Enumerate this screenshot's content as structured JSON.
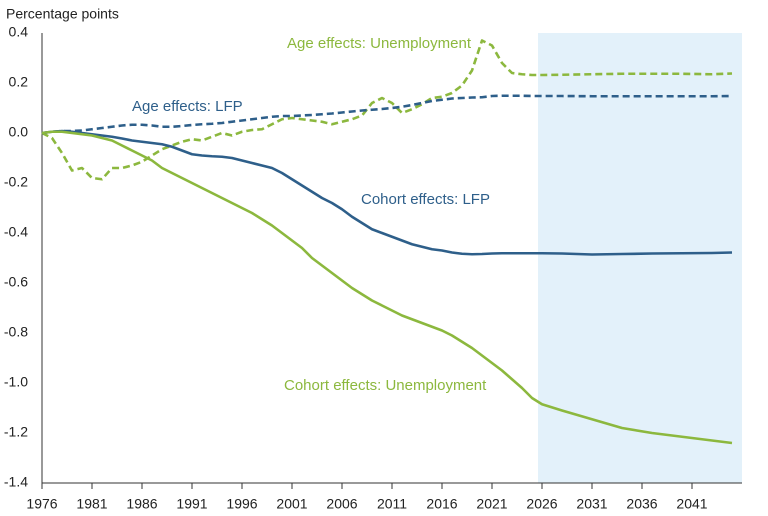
{
  "chart_data": {
    "type": "line",
    "ylabel": "Percentage points",
    "x": [
      1976,
      1977,
      1978,
      1979,
      1980,
      1981,
      1982,
      1983,
      1984,
      1985,
      1986,
      1987,
      1988,
      1989,
      1990,
      1991,
      1992,
      1993,
      1994,
      1995,
      1996,
      1997,
      1998,
      1999,
      2000,
      2001,
      2002,
      2003,
      2004,
      2005,
      2006,
      2007,
      2008,
      2009,
      2010,
      2011,
      2012,
      2013,
      2014,
      2015,
      2016,
      2017,
      2018,
      2019,
      2020,
      2021,
      2022,
      2023,
      2024,
      2025,
      2026,
      2028,
      2031,
      2034,
      2037,
      2040,
      2043,
      2045
    ],
    "xlim": [
      1976,
      2046
    ],
    "xticks": [
      1976,
      1981,
      1986,
      1991,
      1996,
      2001,
      2006,
      2011,
      2016,
      2021,
      2026,
      2031,
      2036,
      2041
    ],
    "ylim": [
      -1.4,
      0.4
    ],
    "yticks": [
      0.4,
      0.2,
      {
        "value": 0,
        "label": "0.0"
      },
      -0.2,
      -0.4,
      -0.6,
      -0.8,
      {
        "value": -1,
        "label": "-1.0"
      },
      -1.2,
      -1.4
    ],
    "shade": {
      "from": 2025.6,
      "to": 2046,
      "color": "#e3f1fa"
    },
    "series": [
      {
        "name": "Age effects: Unemployment",
        "color": "#8cb83e",
        "dash": true,
        "values": [
          0,
          -0.02,
          -0.08,
          -0.15,
          -0.14,
          -0.18,
          -0.185,
          -0.14,
          -0.14,
          -0.13,
          -0.115,
          -0.09,
          -0.065,
          -0.05,
          -0.035,
          -0.025,
          -0.03,
          -0.015,
          0,
          -0.01,
          0.005,
          0.012,
          0.015,
          0.035,
          0.055,
          0.06,
          0.055,
          0.05,
          0.045,
          0.035,
          0.045,
          0.055,
          0.07,
          0.12,
          0.14,
          0.12,
          0.08,
          0.095,
          0.115,
          0.14,
          0.145,
          0.16,
          0.19,
          0.25,
          0.37,
          0.35,
          0.28,
          0.24,
          0.235,
          0.232,
          0.232,
          0.233,
          0.235,
          0.237,
          0.237,
          0.237,
          0.235,
          0.238
        ]
      },
      {
        "name": "Age effects: LFP",
        "color": "#2e5f8a",
        "dash": true,
        "values": [
          0,
          0.005,
          0.008,
          0.008,
          0.01,
          0.015,
          0.02,
          0.025,
          0.03,
          0.033,
          0.033,
          0.03,
          0.025,
          0.025,
          0.028,
          0.032,
          0.035,
          0.037,
          0.04,
          0.045,
          0.05,
          0.055,
          0.06,
          0.065,
          0.068,
          0.068,
          0.07,
          0.072,
          0.075,
          0.078,
          0.082,
          0.086,
          0.09,
          0.093,
          0.096,
          0.1,
          0.105,
          0.112,
          0.12,
          0.128,
          0.133,
          0.138,
          0.14,
          0.142,
          0.143,
          0.148,
          0.149,
          0.149,
          0.149,
          0.148,
          0.148,
          0.148,
          0.147,
          0.147,
          0.147,
          0.147,
          0.147,
          0.148
        ]
      },
      {
        "name": "Cohort effects: LFP",
        "color": "#2e5f8a",
        "dash": false,
        "values": [
          0,
          0.005,
          0.008,
          0.005,
          0,
          -0.005,
          -0.01,
          -0.015,
          -0.022,
          -0.03,
          -0.035,
          -0.04,
          -0.045,
          -0.055,
          -0.07,
          -0.085,
          -0.09,
          -0.093,
          -0.095,
          -0.1,
          -0.11,
          -0.12,
          -0.13,
          -0.14,
          -0.16,
          -0.185,
          -0.21,
          -0.235,
          -0.26,
          -0.28,
          -0.305,
          -0.335,
          -0.36,
          -0.385,
          -0.4,
          -0.415,
          -0.43,
          -0.445,
          -0.455,
          -0.465,
          -0.47,
          -0.478,
          -0.483,
          -0.485,
          -0.484,
          -0.482,
          -0.481,
          -0.481,
          -0.481,
          -0.481,
          -0.481,
          -0.482,
          -0.486,
          -0.484,
          -0.482,
          -0.481,
          -0.48,
          -0.478
        ]
      },
      {
        "name": "Cohort effects: Unemployment",
        "color": "#8cb83e",
        "dash": false,
        "values": [
          0,
          0.005,
          0.005,
          0,
          -0.005,
          -0.01,
          -0.02,
          -0.03,
          -0.05,
          -0.07,
          -0.09,
          -0.11,
          -0.14,
          -0.16,
          -0.18,
          -0.2,
          -0.22,
          -0.24,
          -0.26,
          -0.28,
          -0.3,
          -0.32,
          -0.345,
          -0.37,
          -0.4,
          -0.43,
          -0.46,
          -0.5,
          -0.53,
          -0.56,
          -0.59,
          -0.62,
          -0.645,
          -0.67,
          -0.69,
          -0.71,
          -0.73,
          -0.745,
          -0.76,
          -0.775,
          -0.79,
          -0.81,
          -0.835,
          -0.86,
          -0.89,
          -0.92,
          -0.95,
          -0.985,
          -1.02,
          -1.06,
          -1.085,
          -1.11,
          -1.145,
          -1.18,
          -1.2,
          -1.215,
          -1.23,
          -1.24
        ]
      }
    ]
  }
}
